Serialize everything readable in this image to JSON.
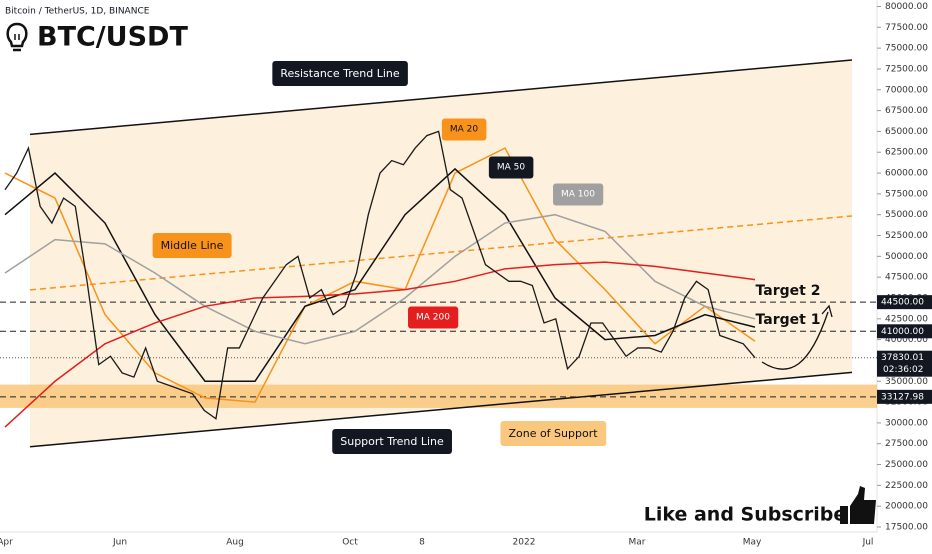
{
  "header": {
    "source": "Bitcoin / TetherUS, 1D, BINANCE",
    "title": "BTC/USDT"
  },
  "chart_data": {
    "type": "line",
    "x_labels": [
      "Apr",
      "Jun",
      "Aug",
      "Oct",
      "8",
      "2022",
      "Mar",
      "May",
      "Jul"
    ],
    "ylim": [
      17500,
      80000
    ],
    "yticks": [
      {
        "value": 17500,
        "label": "17500.00"
      },
      {
        "value": 20000,
        "label": "20000.00"
      },
      {
        "value": 22500,
        "label": "22500.00"
      },
      {
        "value": 25000,
        "label": "25000.00"
      },
      {
        "value": 27500,
        "label": "27500.00"
      },
      {
        "value": 30000,
        "label": "30000.00"
      },
      {
        "value": 32500,
        "label": "32500.00"
      },
      {
        "value": 35000,
        "label": "35000.00"
      },
      {
        "value": 37500,
        "label": "37500.00"
      },
      {
        "value": 40000,
        "label": "40000.00"
      },
      {
        "value": 42500,
        "label": "42500.00"
      },
      {
        "value": 45000,
        "label": "45000.00"
      },
      {
        "value": 47500,
        "label": "47500.00"
      },
      {
        "value": 50000,
        "label": "50000.00"
      },
      {
        "value": 52500,
        "label": "52500.00"
      },
      {
        "value": 55000,
        "label": "55000.00"
      },
      {
        "value": 57500,
        "label": "57500.00"
      },
      {
        "value": 60000,
        "label": "60000.00"
      },
      {
        "value": 62500,
        "label": "62500.00"
      },
      {
        "value": 65000,
        "label": "65000.00"
      },
      {
        "value": 67500,
        "label": "67500.00"
      },
      {
        "value": 70000,
        "label": "70000.00"
      },
      {
        "value": 72500,
        "label": "72500.00"
      },
      {
        "value": 75000,
        "label": "75000.00"
      },
      {
        "value": 77500,
        "label": "77500.00"
      },
      {
        "value": 80000,
        "label": "80000.00"
      }
    ],
    "price": {
      "color": "#1a1a1a",
      "values": [
        58000,
        60000,
        63000,
        56000,
        54000,
        57000,
        56000,
        47000,
        37000,
        38000,
        36000,
        35500,
        39000,
        35000,
        34500,
        34000,
        33500,
        31500,
        30500,
        39000,
        39000,
        42000,
        45000,
        47000,
        49000,
        50000,
        45000,
        46000,
        43000,
        44000,
        48000,
        55000,
        60000,
        61500,
        61000,
        63000,
        64500,
        65000,
        58000,
        57000,
        53000,
        49000,
        48000,
        47000,
        47000,
        46500,
        42000,
        42500,
        36500,
        38000,
        42000,
        42000,
        40000,
        38000,
        39000,
        39000,
        38500,
        41000,
        45000,
        47000,
        46000,
        40500,
        40000,
        39500,
        37830.01
      ]
    },
    "series": [
      {
        "name": "MA 20",
        "color": "#f7931a",
        "values": [
          60000,
          57000,
          43000,
          36000,
          33000,
          32500,
          44000,
          47000,
          46000,
          60000,
          63000,
          52000,
          46000,
          39500,
          44000,
          39800
        ]
      },
      {
        "name": "MA 50",
        "color": "#111111",
        "values": [
          55000,
          60000,
          54000,
          43000,
          35000,
          35000,
          44000,
          46000,
          55000,
          60500,
          55000,
          45000,
          40000,
          40500,
          43000,
          41500
        ]
      },
      {
        "name": "MA 100",
        "color": "#a0a0a0",
        "values": [
          48000,
          52000,
          51500,
          48000,
          44000,
          41000,
          39500,
          41000,
          45000,
          50000,
          54000,
          55000,
          53000,
          47000,
          44000,
          42500
        ]
      },
      {
        "name": "MA 200",
        "color": "#e41e1e",
        "values": [
          29500,
          35000,
          39500,
          42000,
          44000,
          45000,
          45200,
          45500,
          46000,
          47000,
          48500,
          49000,
          49300,
          48800,
          48000,
          47200
        ]
      }
    ],
    "trend_lines": {
      "resistance": {
        "label": "Resistance Trend Line",
        "from": 64640,
        "to": 73580
      },
      "middle": {
        "label": "Middle Line",
        "from": 45970,
        "to": 54850
      },
      "support": {
        "label": "Support Trend Line",
        "from": 27140,
        "to": 36060
      }
    },
    "zone_of_support": {
      "label": "Zone of Support",
      "low": 31800,
      "high": 34600
    },
    "levels": [
      {
        "value": 44500,
        "label": "44500.00",
        "annotation": "Target 2"
      },
      {
        "value": 41000,
        "label": "41000.00",
        "annotation": "Target 1"
      },
      {
        "value": 33127.98,
        "label": "33127.98"
      }
    ],
    "last_price": {
      "value": 37830.01,
      "label": "37830.01",
      "countdown": "02:36:02"
    },
    "cta": "Like and Subscribe"
  }
}
